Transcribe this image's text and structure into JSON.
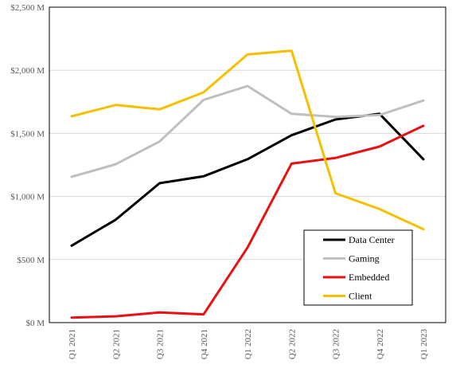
{
  "chart_data": {
    "type": "line",
    "title": "",
    "xlabel": "",
    "ylabel": "",
    "categories": [
      "Q1 2021",
      "Q2 2021",
      "Q3 2021",
      "Q4 2021",
      "Q1 2022",
      "Q2 2022",
      "Q3 2022",
      "Q4 2022",
      "Q1 2023"
    ],
    "y_ticks": [
      "$0 M",
      "$500 M",
      "$1,000 M",
      "$1,500 M",
      "$2,000 M",
      "$2,500 M"
    ],
    "y_tick_values": [
      0,
      500,
      1000,
      1500,
      2000,
      2500
    ],
    "ylim": [
      0,
      2500
    ],
    "grid": true,
    "legend_position": "lower-right",
    "series": [
      {
        "name": "Data Center",
        "color": "#000000",
        "values": [
          610,
          815,
          1105,
          1160,
          1295,
          1485,
          1610,
          1655,
          1295
        ]
      },
      {
        "name": "Gaming",
        "color": "#bfbfbf",
        "values": [
          1155,
          1255,
          1435,
          1765,
          1875,
          1655,
          1630,
          1645,
          1760
        ]
      },
      {
        "name": "Embedded",
        "color": "#e81010",
        "values": [
          40,
          50,
          80,
          65,
          595,
          1260,
          1305,
          1395,
          1560
        ]
      },
      {
        "name": "Client",
        "color": "#f5c000",
        "values": [
          1635,
          1725,
          1690,
          1825,
          2125,
          2155,
          1025,
          900,
          740
        ]
      }
    ]
  }
}
